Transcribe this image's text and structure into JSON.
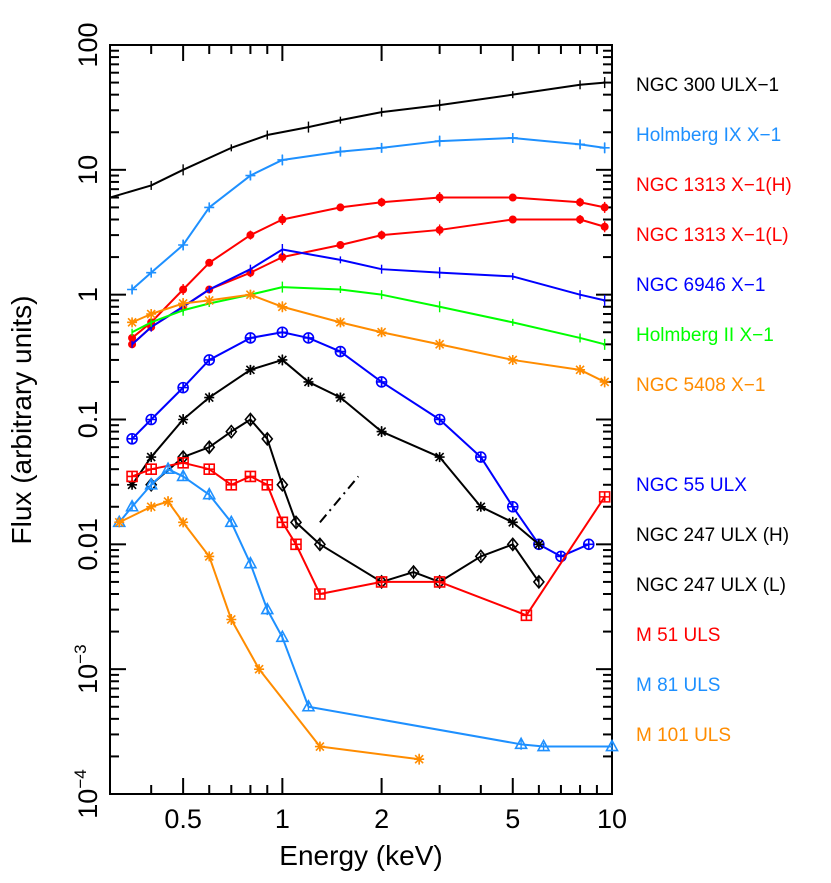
{
  "chart_data": {
    "type": "line",
    "xscale": "log",
    "yscale": "log",
    "xlabel": "Energy (keV)",
    "ylabel": "Flux (arbitrary units)",
    "xlim": [
      0.3,
      10
    ],
    "ylim": [
      0.0001,
      100
    ],
    "x_ticks": [
      {
        "value": 0.5,
        "label": "0.5"
      },
      {
        "value": 1,
        "label": "1"
      },
      {
        "value": 2,
        "label": "2"
      },
      {
        "value": 5,
        "label": "5"
      },
      {
        "value": 10,
        "label": "10"
      }
    ],
    "y_ticks": [
      {
        "value": 0.0001,
        "base": "10",
        "exp": "−4"
      },
      {
        "value": 0.001,
        "base": "10",
        "exp": "−3"
      },
      {
        "value": 0.01,
        "label": "0.01"
      },
      {
        "value": 0.1,
        "label": "0.1"
      },
      {
        "value": 1,
        "label": "1"
      },
      {
        "value": 10,
        "label": "10"
      },
      {
        "value": 100,
        "label": "100"
      }
    ],
    "series": [
      {
        "name": "NGC 300 ULX−1",
        "color": "#000000",
        "marker": "none",
        "x": [
          0.3,
          0.4,
          0.5,
          0.7,
          0.9,
          1.2,
          1.5,
          2,
          3,
          5,
          8,
          9.5
        ],
        "y": [
          6,
          7.5,
          10,
          15,
          19,
          22,
          25,
          29,
          33,
          40,
          48,
          50
        ]
      },
      {
        "name": "Holmberg IX X−1",
        "color": "#1e90ff",
        "marker": "plus",
        "x": [
          0.35,
          0.4,
          0.5,
          0.6,
          0.8,
          1.0,
          1.5,
          2,
          3,
          5,
          8,
          9.5
        ],
        "y": [
          1.1,
          1.5,
          2.5,
          5,
          9,
          12,
          14,
          15,
          17,
          18,
          16,
          15
        ]
      },
      {
        "name": "NGC 1313 X−1(H)",
        "color": "#ff0000",
        "marker": "dot",
        "x": [
          0.35,
          0.4,
          0.5,
          0.6,
          0.8,
          1.0,
          1.5,
          2,
          3,
          5,
          8,
          9.5
        ],
        "y": [
          0.45,
          0.6,
          1.1,
          1.8,
          3,
          4,
          5,
          5.5,
          6,
          6,
          5.5,
          5
        ]
      },
      {
        "name": "NGC 1313 X−1(L)",
        "color": "#ff0000",
        "marker": "dot",
        "x": [
          0.35,
          0.4,
          0.5,
          0.6,
          0.8,
          1.0,
          1.5,
          2,
          3,
          5,
          8,
          9.5
        ],
        "y": [
          0.4,
          0.55,
          0.8,
          1.1,
          1.5,
          2,
          2.5,
          3,
          3.3,
          4,
          4,
          3.5
        ]
      },
      {
        "name": "NGC 6946 X−1",
        "color": "#0000ff",
        "marker": "none",
        "x": [
          0.35,
          0.4,
          0.5,
          0.6,
          0.8,
          1.0,
          1.5,
          2,
          3,
          5,
          8,
          9.5
        ],
        "y": [
          0.4,
          0.55,
          0.8,
          1.1,
          1.6,
          2.3,
          1.9,
          1.6,
          1.5,
          1.4,
          1.0,
          0.9
        ]
      },
      {
        "name": "Holmberg II X−1",
        "color": "#00ff00",
        "marker": "none",
        "x": [
          0.35,
          0.4,
          0.5,
          0.6,
          0.8,
          1.0,
          1.5,
          2,
          3,
          5,
          8,
          9.5
        ],
        "y": [
          0.5,
          0.6,
          0.75,
          0.85,
          1.0,
          1.15,
          1.1,
          1.0,
          0.8,
          0.6,
          0.45,
          0.4
        ]
      },
      {
        "name": "NGC 5408 X−1",
        "color": "#ff8c00",
        "marker": "star",
        "x": [
          0.35,
          0.4,
          0.5,
          0.6,
          0.8,
          1.0,
          1.5,
          2,
          3,
          5,
          8,
          9.5
        ],
        "y": [
          0.6,
          0.7,
          0.85,
          0.9,
          1.0,
          0.8,
          0.6,
          0.5,
          0.4,
          0.3,
          0.25,
          0.2
        ]
      },
      {
        "name": "NGC  55 ULX",
        "color": "#0000ff",
        "marker": "circle-plus",
        "x": [
          0.35,
          0.4,
          0.5,
          0.6,
          0.8,
          1.0,
          1.2,
          1.5,
          2,
          3,
          4,
          5,
          6,
          7,
          8.5
        ],
        "y": [
          0.07,
          0.1,
          0.18,
          0.3,
          0.45,
          0.5,
          0.45,
          0.35,
          0.2,
          0.1,
          0.05,
          0.02,
          0.01,
          0.008,
          0.01
        ]
      },
      {
        "name": "NGC 247 ULX (H)",
        "color": "#000000",
        "marker": "star",
        "x": [
          0.35,
          0.4,
          0.5,
          0.6,
          0.8,
          1.0,
          1.2,
          1.5,
          2,
          3,
          4,
          5,
          6
        ],
        "y": [
          0.03,
          0.05,
          0.1,
          0.15,
          0.25,
          0.3,
          0.2,
          0.15,
          0.08,
          0.05,
          0.02,
          0.015,
          0.01
        ]
      },
      {
        "name": "NGC 247 ULX (L)",
        "color": "#000000",
        "marker": "diamond",
        "x": [
          0.4,
          0.5,
          0.6,
          0.7,
          0.8,
          0.9,
          1.0,
          1.1,
          1.3,
          2,
          2.5,
          3,
          4,
          5,
          6
        ],
        "y": [
          0.03,
          0.05,
          0.06,
          0.08,
          0.1,
          0.07,
          0.03,
          0.015,
          0.01,
          0.005,
          0.006,
          0.005,
          0.008,
          0.01,
          0.005
        ]
      },
      {
        "name": "M  51 ULS",
        "color": "#ff0000",
        "marker": "square-plus",
        "x": [
          0.35,
          0.4,
          0.5,
          0.6,
          0.7,
          0.8,
          0.9,
          1.0,
          1.1,
          1.3,
          2,
          3,
          5.5,
          9.5
        ],
        "y": [
          0.035,
          0.04,
          0.045,
          0.04,
          0.03,
          0.035,
          0.03,
          0.015,
          0.01,
          0.004,
          0.005,
          0.005,
          0.0027,
          0.024
        ]
      },
      {
        "name": "M  81 ULS",
        "color": "#1e90ff",
        "marker": "triangle",
        "x": [
          0.32,
          0.35,
          0.4,
          0.45,
          0.5,
          0.6,
          0.7,
          0.8,
          0.9,
          1.0,
          1.2,
          5.3,
          6.2,
          10
        ],
        "y": [
          0.015,
          0.02,
          0.03,
          0.04,
          0.035,
          0.025,
          0.015,
          0.007,
          0.003,
          0.0018,
          0.0005,
          0.00025,
          0.00024,
          0.00024
        ]
      },
      {
        "name": "M 101 ULS",
        "color": "#ff8c00",
        "marker": "star",
        "x": [
          0.32,
          0.4,
          0.45,
          0.5,
          0.6,
          0.7,
          0.85,
          1.3,
          2.6
        ],
        "y": [
          0.015,
          0.02,
          0.022,
          0.015,
          0.008,
          0.0025,
          0.001,
          0.00024,
          0.00019
        ]
      }
    ],
    "annotations": [
      {
        "type": "dash-dot-line",
        "color": "#000000",
        "x": [
          1.3,
          1.7
        ],
        "y": [
          0.015,
          0.035
        ]
      }
    ],
    "legend_position": "right"
  }
}
